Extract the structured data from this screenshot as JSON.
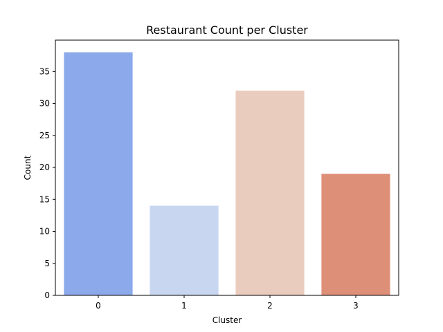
{
  "chart_data": {
    "type": "bar",
    "title": "Restaurant Count per Cluster",
    "xlabel": "Cluster",
    "ylabel": "Count",
    "categories": [
      "0",
      "1",
      "2",
      "3"
    ],
    "values": [
      38,
      14,
      32,
      19
    ],
    "colors": [
      "#8caaeb",
      "#c8d6f0",
      "#eaccbe",
      "#de8f78"
    ],
    "ylim": [
      0,
      39.9
    ],
    "yticks": [
      0,
      5,
      10,
      15,
      20,
      25,
      30,
      35
    ],
    "grid": false,
    "legend": "none"
  }
}
